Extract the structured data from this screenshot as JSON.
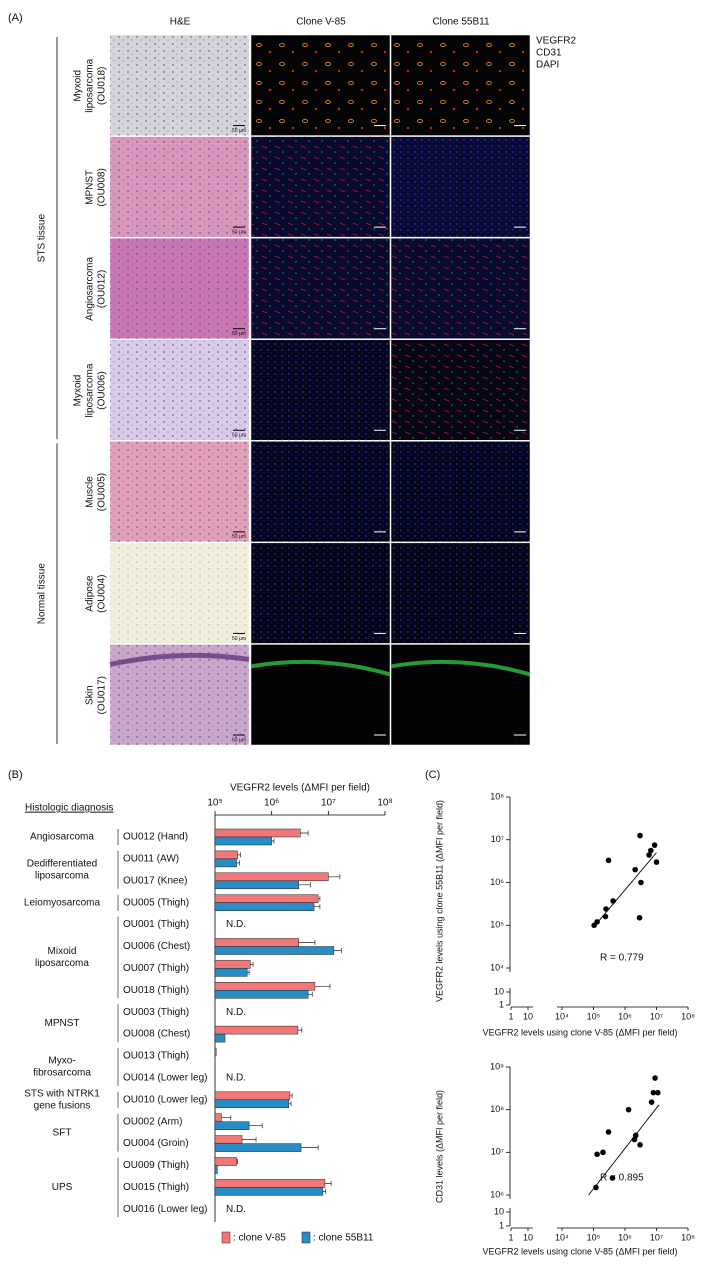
{
  "panels": {
    "a": {
      "label": "(A)",
      "columns": [
        "H&E",
        "Clone V-85",
        "Clone 55B11"
      ],
      "stain_legend": [
        {
          "name": "VEGFR2",
          "color": "#ff2020"
        },
        {
          "name": "CD31",
          "color": "#10b040"
        },
        {
          "name": "DAPI",
          "color": "#2030ff"
        }
      ],
      "groups": [
        {
          "label": "STS tissue",
          "rows": [
            {
              "label_lines": [
                "Myxoid",
                "liposarcoma",
                "(OU018)"
              ]
            },
            {
              "label_lines": [
                "MPNST",
                "(OU008)"
              ]
            },
            {
              "label_lines": [
                "Angiosarcoma",
                "(OU012)"
              ]
            },
            {
              "label_lines": [
                "Myxoid",
                "liposarcoma",
                "(OU006)"
              ]
            }
          ]
        },
        {
          "label": "Normal tissue",
          "rows": [
            {
              "label_lines": [
                "Muscle",
                "(OU005)"
              ]
            },
            {
              "label_lines": [
                "Adipose",
                "(OU004)"
              ]
            },
            {
              "label_lines": [
                "Skin",
                "(OU017)"
              ]
            }
          ]
        }
      ],
      "scale_bar": "50 µm"
    },
    "b": {
      "label": "(B)",
      "header": "Histologic diagnosis"
    },
    "c": {
      "label": "(C)"
    }
  },
  "chart_data": [
    {
      "type": "hbar",
      "xlabel": "VEGFR2 levels (ΔMFI per field)",
      "xscale": "log",
      "xlim": [
        100000,
        100000000
      ],
      "xticks": [
        {
          "value": 100000,
          "label": "10⁵"
        },
        {
          "value": 1000000,
          "label": "10⁶"
        },
        {
          "value": 10000000,
          "label": "10⁷"
        },
        {
          "value": 100000000,
          "label": "10⁸"
        }
      ],
      "groups": [
        {
          "label_lines": [
            "Angiosarcoma"
          ],
          "categories": [
            "OU012 (Hand)"
          ]
        },
        {
          "label_lines": [
            "Dedifferentiated",
            "liposarcoma"
          ],
          "categories": [
            "OU011 (AW)",
            "OU017 (Knee)"
          ]
        },
        {
          "label_lines": [
            "Leiomyosarcoma"
          ],
          "categories": [
            "OU005 (Thigh)"
          ]
        },
        {
          "label_lines": [
            "Mixoid",
            "liposarcoma"
          ],
          "categories": [
            "OU001 (Thigh)",
            "OU006 (Chest)",
            "OU007 (Thigh)",
            "OU018 (Thigh)"
          ]
        },
        {
          "label_lines": [
            "MPNST"
          ],
          "categories": [
            "OU003 (Thigh)",
            "OU008 (Chest)"
          ]
        },
        {
          "label_lines": [
            "Myxo-",
            "fibrosarcoma"
          ],
          "categories": [
            "OU013 (Thigh)",
            "OU014 (Lower leg)"
          ]
        },
        {
          "label_lines": [
            "STS with NTRK1",
            "gene fusions"
          ],
          "categories": [
            "OU010 (Lower leg)"
          ]
        },
        {
          "label_lines": [
            "SFT"
          ],
          "categories": [
            "OU002 (Arm)",
            "OU004 (Groin)"
          ]
        },
        {
          "label_lines": [
            "UPS"
          ],
          "categories": [
            "OU009 (Thigh)",
            "OU015 (Thigh)",
            "OU016 (Lower leg)"
          ]
        }
      ],
      "series": [
        {
          "name": ": clone V-85",
          "color": "#f07878",
          "values": [
            3200000,
            250000,
            10000000,
            6600000,
            null,
            3000000,
            420000,
            5800000,
            null,
            2900000,
            105000,
            null,
            2100000,
            130000,
            300000,
            240000,
            8700000,
            null
          ],
          "errors": [
            1200000,
            30000,
            6000000,
            500000,
            null,
            2800000,
            50000,
            4900000,
            null,
            500000,
            null,
            null,
            200000,
            60000,
            230000,
            10000,
            2500000,
            null
          ]
        },
        {
          "name": ": clone 55B11",
          "color": "#2a8cc4",
          "values": [
            1000000,
            240000,
            3000000,
            5600000,
            null,
            12500000,
            370000,
            4400000,
            null,
            150000,
            null,
            null,
            2000000,
            400000,
            3300000,
            110000,
            8000000,
            null
          ],
          "errors": [
            100000,
            30000,
            1800000,
            1500000,
            null,
            4500000,
            30000,
            800000,
            null,
            null,
            null,
            null,
            200000,
            280000,
            3300000,
            null,
            1000000,
            null
          ]
        }
      ],
      "annotations": [
        {
          "text": "N.D.",
          "category": "OU001 (Thigh)"
        },
        {
          "text": "N.D.",
          "category": "OU003 (Thigh)"
        },
        {
          "text": "N.D.",
          "category": "OU014 (Lower leg)"
        },
        {
          "text": "N.D.",
          "category": "OU016 (Lower leg)"
        }
      ]
    },
    {
      "type": "scatter",
      "xlabel": "VEGFR2 levels using clone V-85 (ΔMFI per field)",
      "ylabel": "VEGFR2 levels using clone 55B11 (ΔMFI per field)",
      "xscale": "log",
      "yscale": "log",
      "xlim": [
        1,
        100000000
      ],
      "xbreak": [
        10,
        10000
      ],
      "ylim": [
        1,
        100000000
      ],
      "ybreak": [
        10,
        10000
      ],
      "xticks": [
        1,
        10,
        {
          "value": 10000,
          "label": "10⁴"
        },
        {
          "value": 100000,
          "label": "10⁵"
        },
        {
          "value": 1000000,
          "label": "10⁶"
        },
        {
          "value": 10000000,
          "label": "10⁷"
        },
        {
          "value": 100000000,
          "label": "10⁸"
        }
      ],
      "yticks": [
        1,
        10,
        {
          "value": 10000,
          "label": "10⁴"
        },
        {
          "value": 100000,
          "label": "10⁵"
        },
        {
          "value": 1000000,
          "label": "10⁶"
        },
        {
          "value": 10000000,
          "label": "10⁷"
        },
        {
          "value": 100000000,
          "label": "10⁸"
        }
      ],
      "color": "#000000",
      "x": [
        3200000,
        250000,
        10000000,
        6600000,
        3000000,
        420000,
        5800000,
        2900000,
        105000,
        2100000,
        130000,
        300000,
        240000,
        8700000
      ],
      "y": [
        1000000,
        240000,
        3000000,
        5600000,
        12500000,
        370000,
        4400000,
        150000,
        100000,
        2000000,
        120000,
        3300000,
        160000,
        7500000
      ],
      "fit": {
        "x": [
          100000,
          10000000
        ],
        "y": [
          90000,
          5000000
        ]
      },
      "annotation": "R = 0.779"
    },
    {
      "type": "scatter",
      "xlabel": "VEGFR2 levels using clone V-85 (ΔMFI per field)",
      "ylabel": "CD31 levels (ΔMFI per field)",
      "xscale": "log",
      "yscale": "log",
      "xlim": [
        1,
        100000000
      ],
      "xbreak": [
        10,
        10000
      ],
      "ylim": [
        1,
        1000000000
      ],
      "ybreak": [
        10,
        1000000
      ],
      "xticks": [
        1,
        10,
        {
          "value": 10000,
          "label": "10⁴"
        },
        {
          "value": 100000,
          "label": "10⁵"
        },
        {
          "value": 1000000,
          "label": "10⁶"
        },
        {
          "value": 10000000,
          "label": "10⁷"
        },
        {
          "value": 100000000,
          "label": "10⁸"
        }
      ],
      "yticks": [
        1,
        10,
        {
          "value": 1000000,
          "label": "10⁶"
        },
        {
          "value": 10000000,
          "label": "10⁷"
        },
        {
          "value": 100000000,
          "label": "10⁸"
        },
        {
          "value": 1000000000,
          "label": "10⁹"
        }
      ],
      "color": "#000000",
      "x": [
        120000,
        130000,
        200000,
        300000,
        400000,
        1300000,
        2000000,
        2200000,
        3000000,
        7000000,
        8000000,
        9000000,
        11000000
      ],
      "y": [
        1500000,
        9000000,
        10000000,
        30000000,
        2500000,
        100000000,
        20000000,
        25000000,
        15000000,
        150000000,
        250000000,
        550000000,
        250000000
      ],
      "fit": {
        "x": [
          70000,
          12000000
        ],
        "y": [
          1000000,
          130000000
        ]
      },
      "annotation": "R = 0.895"
    }
  ]
}
